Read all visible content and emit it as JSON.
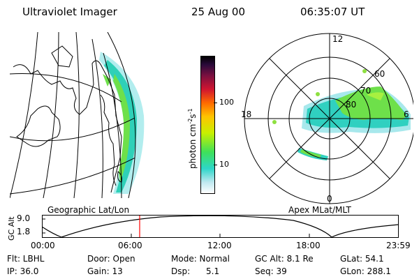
{
  "header": {
    "title": "Ultraviolet Imager",
    "date": "25 Aug 00",
    "time": "06:35:07 UT"
  },
  "left_panel": {
    "caption": "Geographic Lat/Lon"
  },
  "colorbar": {
    "label": "photon cm",
    "exp1": "-2",
    "mid": "s",
    "exp2": "-1",
    "ticks": [
      "100",
      "10"
    ]
  },
  "polar_panel": {
    "caption": "Apex MLat/MLT",
    "mlt_labels": {
      "top": "12",
      "left": "18",
      "right": "6",
      "bottom": "0"
    },
    "mlat_labels": [
      "60",
      "70",
      "80"
    ]
  },
  "altitude_plot": {
    "ylabel": "GC Alt",
    "yticks": [
      "9.0",
      "1.8"
    ],
    "xticks": [
      "00:00",
      "06:00",
      "12:00",
      "18:00",
      "23:59"
    ],
    "current_time_marker": "06:35"
  },
  "info": {
    "flt": "Flt: LBHL",
    "ip": "IP: 36.0",
    "door": "Door: Open",
    "gain": "Gain: 13",
    "mode": "Mode: Normal",
    "dsp_label": "Dsp:",
    "dsp_value": "5.1",
    "gcalt": "GC Alt: 8.1 Re",
    "seq": "Seq: 39",
    "glat": "GLat:  54.1",
    "glon": "GLon: 288.1"
  },
  "colors": {
    "marker": "#ff0000"
  }
}
